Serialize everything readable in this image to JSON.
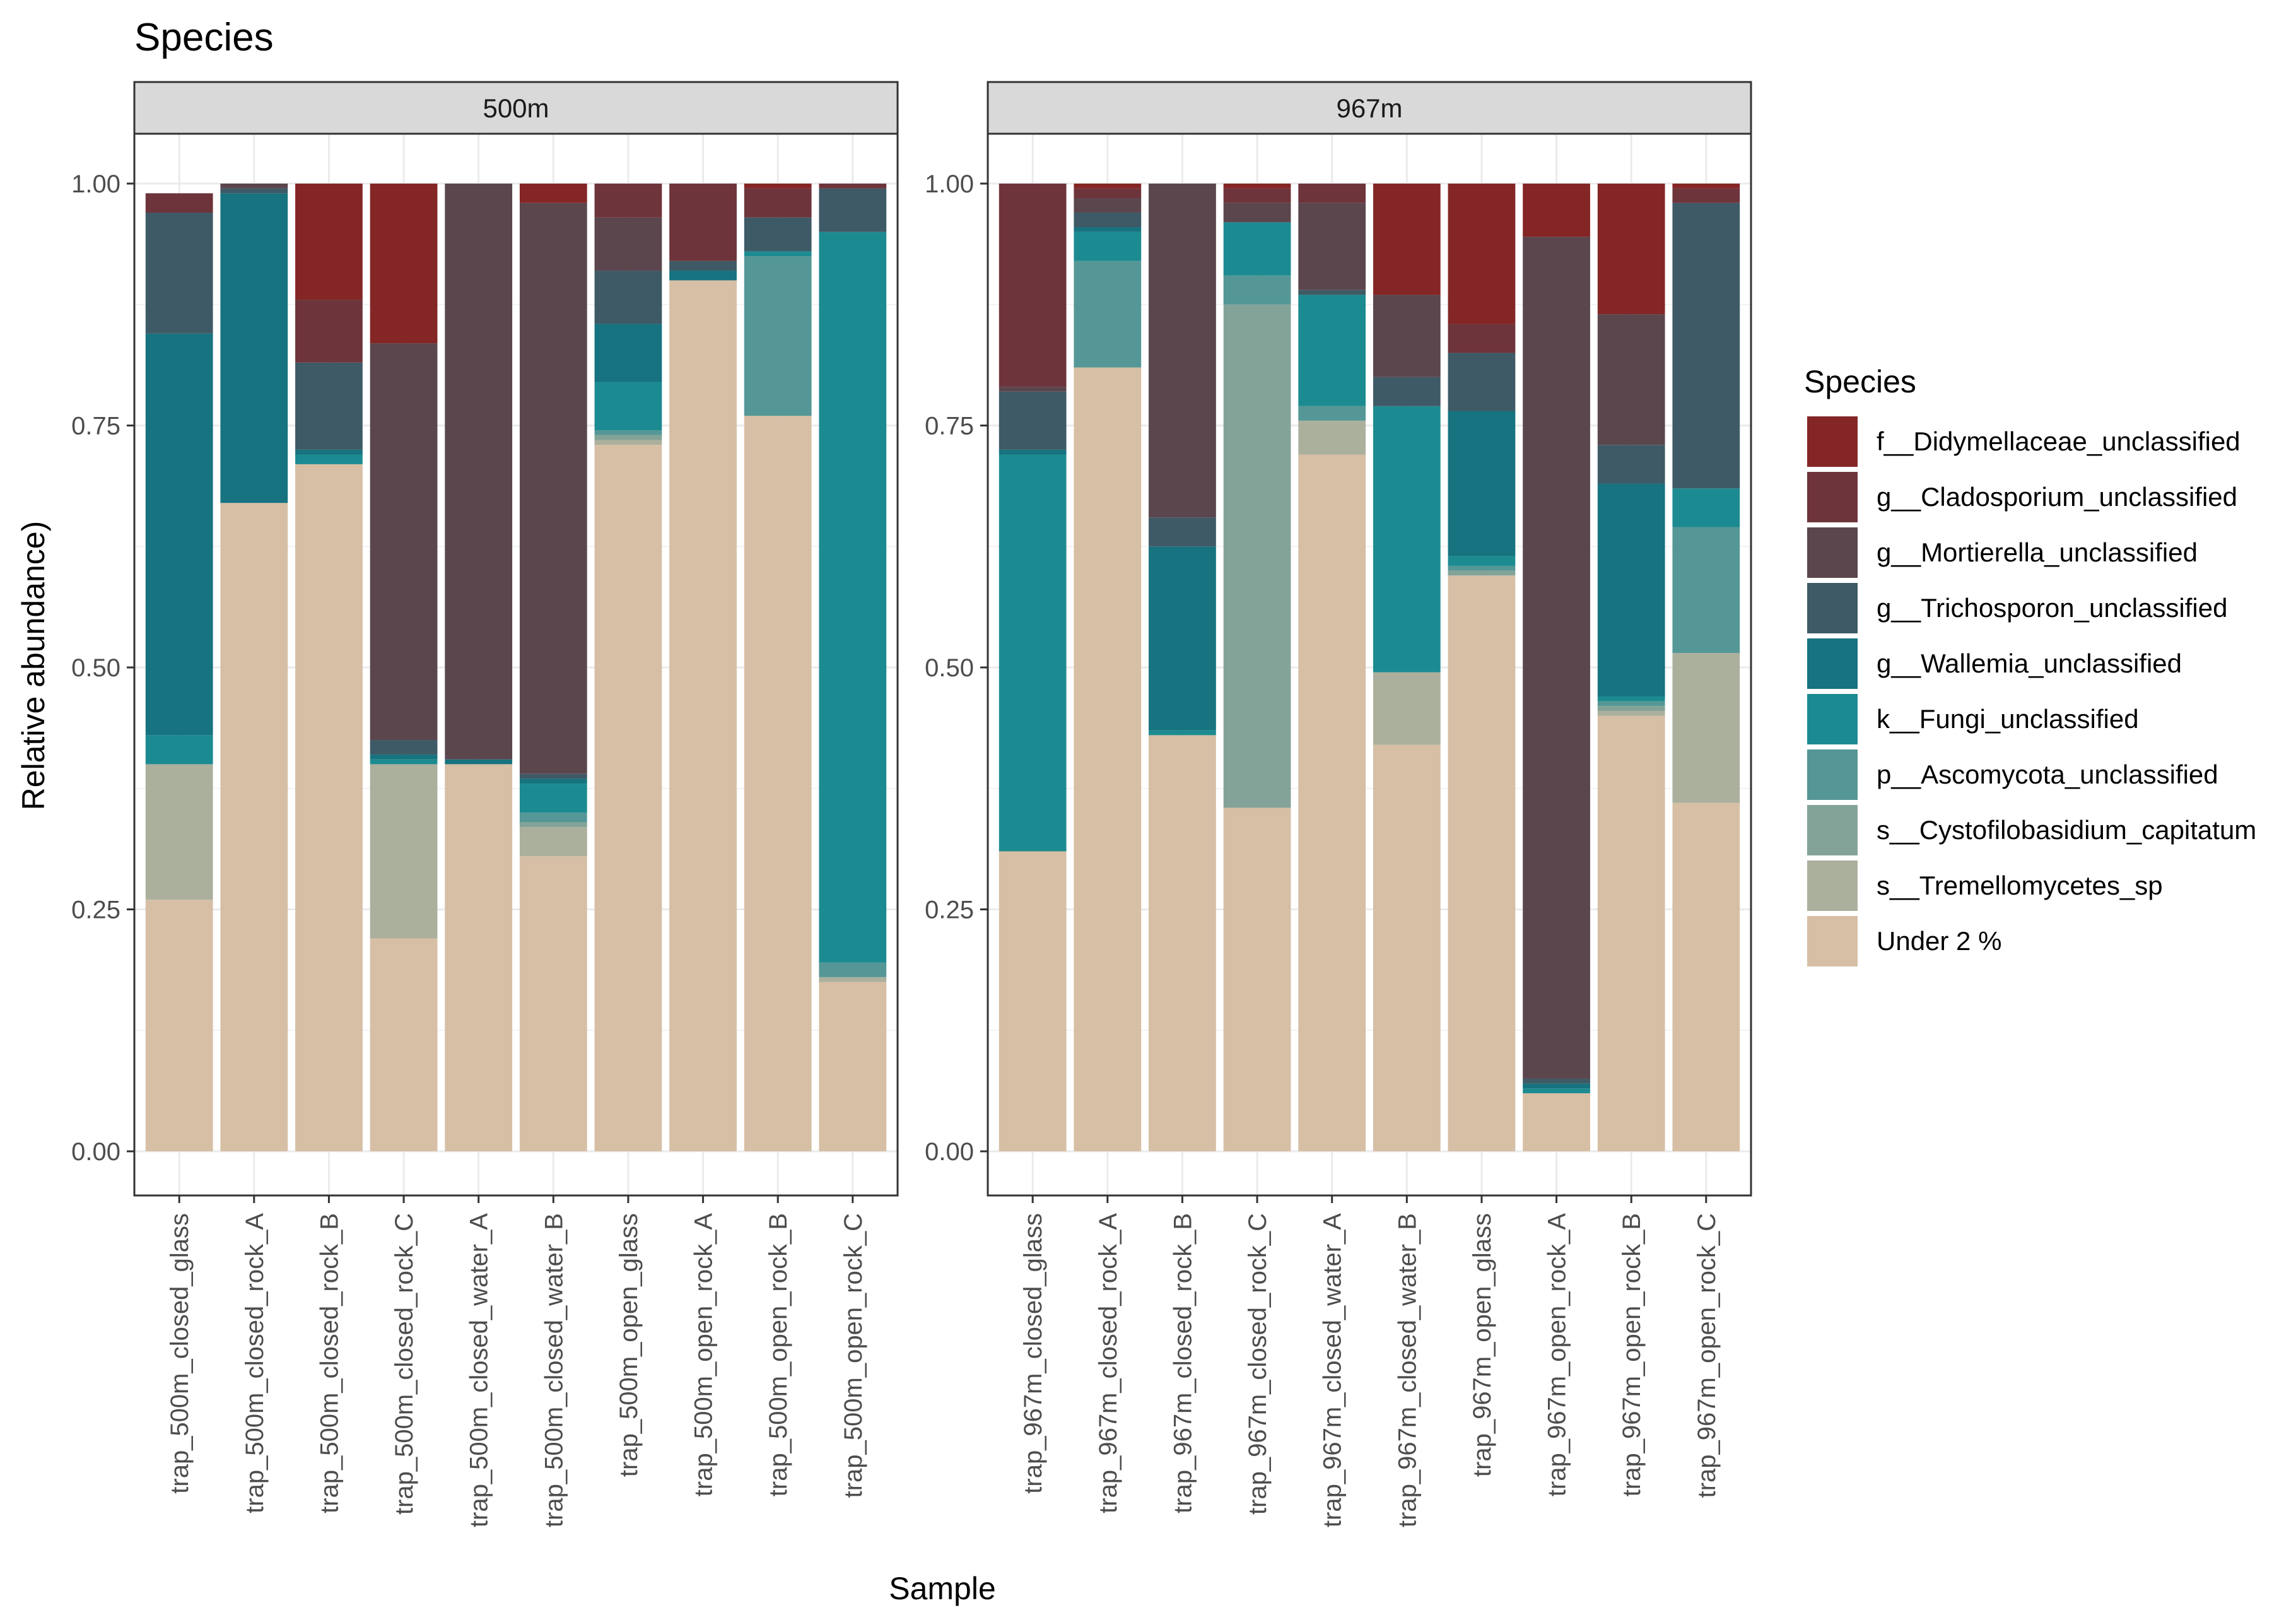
{
  "chart_data": {
    "type": "bar",
    "stacked": true,
    "title": "Species",
    "xlabel": "Sample",
    "ylabel": "Relative abundance)",
    "ylim": [
      0,
      1
    ],
    "yticks": [
      "0.00",
      "0.25",
      "0.50",
      "0.75",
      "1.00"
    ],
    "grid": true,
    "legend_position": "right",
    "legend_title": "Species",
    "series": [
      {
        "name": "f__Didymellaceae_unclassified",
        "color": "#842626"
      },
      {
        "name": "g__Cladosporium_unclassified",
        "color": "#6e343b"
      },
      {
        "name": "g__Mortierella_unclassified",
        "color": "#5b464e"
      },
      {
        "name": "g__Trichosporon_unclassified",
        "color": "#3e5a66"
      },
      {
        "name": "g__Wallemia_unclassified",
        "color": "#16737f"
      },
      {
        "name": "k__Fungi_unclassified",
        "color": "#1c8b91"
      },
      {
        "name": "p__Ascomycota_unclassified",
        "color": "#559796"
      },
      {
        "name": "s__Cystofilobasidium_capitatum",
        "color": "#84a398"
      },
      {
        "name": "s__Tremellomycetes_sp",
        "color": "#abb09d"
      },
      {
        "name": "Under 2 %",
        "color": "#d6bfa5"
      }
    ],
    "panels": [
      {
        "label": "500m",
        "samples": [
          {
            "name": "trap_500m_closed_glass",
            "values": [
              0,
              0.02,
              0,
              0.125,
              0.415,
              0.03,
              0,
              0,
              0.14,
              0.26
            ]
          },
          {
            "name": "trap_500m_closed_rock_A",
            "values": [
              0,
              0,
              0.005,
              0.005,
              0.32,
              0,
              0,
              0,
              0,
              0.67
            ]
          },
          {
            "name": "trap_500m_closed_rock_B",
            "values": [
              0.12,
              0.065,
              0,
              0.09,
              0.005,
              0.01,
              0,
              0,
              0,
              0.71
            ]
          },
          {
            "name": "trap_500m_closed_rock_C",
            "values": [
              0.165,
              0,
              0.41,
              0.015,
              0.005,
              0.005,
              0,
              0,
              0.18,
              0.22
            ]
          },
          {
            "name": "trap_500m_closed_water_A",
            "values": [
              0,
              0,
              0.595,
              0,
              0.005,
              0,
              0,
              0,
              0,
              0.4
            ]
          },
          {
            "name": "trap_500m_closed_water_B",
            "values": [
              0.02,
              0,
              0.59,
              0.005,
              0.005,
              0.03,
              0.01,
              0.005,
              0.03,
              0.305
            ]
          },
          {
            "name": "trap_500m_open_glass",
            "values": [
              0,
              0.035,
              0.055,
              0.055,
              0.06,
              0.05,
              0.005,
              0.005,
              0.005,
              0.73
            ]
          },
          {
            "name": "trap_500m_open_rock_A",
            "values": [
              0,
              0.08,
              0,
              0.01,
              0.01,
              0,
              0,
              0,
              0,
              0.9
            ]
          },
          {
            "name": "trap_500m_open_rock_B",
            "values": [
              0.005,
              0.03,
              0,
              0.035,
              0,
              0.005,
              0.165,
              0,
              0,
              0.76
            ]
          },
          {
            "name": "trap_500m_open_rock_C",
            "values": [
              0,
              0.005,
              0,
              0.045,
              0,
              0.755,
              0.015,
              0,
              0.005,
              0.175
            ]
          }
        ]
      },
      {
        "label": "967m",
        "samples": [
          {
            "name": "trap_967m_closed_glass",
            "values": [
              0,
              0.21,
              0.005,
              0.06,
              0.005,
              0.41,
              0,
              0,
              0,
              0.31
            ]
          },
          {
            "name": "trap_967m_closed_rock_A",
            "values": [
              0.005,
              0.01,
              0.015,
              0.015,
              0.005,
              0.03,
              0.11,
              0,
              0,
              0.81
            ]
          },
          {
            "name": "trap_967m_closed_rock_B",
            "values": [
              0,
              0,
              0.345,
              0.03,
              0.19,
              0.005,
              0,
              0,
              0,
              0.43
            ]
          },
          {
            "name": "trap_967m_closed_rock_C",
            "values": [
              0.005,
              0.015,
              0.02,
              0,
              0,
              0.055,
              0.03,
              0.52,
              0,
              0.355
            ]
          },
          {
            "name": "trap_967m_closed_water_A",
            "values": [
              0,
              0.02,
              0.09,
              0.005,
              0,
              0.115,
              0.015,
              0,
              0.035,
              0.72
            ]
          },
          {
            "name": "trap_967m_closed_water_B",
            "values": [
              0.115,
              0,
              0.085,
              0.03,
              0,
              0.275,
              0,
              0,
              0.075,
              0.42
            ]
          },
          {
            "name": "trap_967m_open_glass",
            "values": [
              0.145,
              0.03,
              0,
              0.06,
              0.15,
              0.01,
              0.005,
              0.005,
              0,
              0.595
            ]
          },
          {
            "name": "trap_967m_open_rock_A",
            "values": [
              0.055,
              0,
              0.87,
              0.005,
              0.005,
              0.005,
              0,
              0,
              0,
              0.06
            ]
          },
          {
            "name": "trap_967m_open_rock_B",
            "values": [
              0.135,
              0,
              0.135,
              0.04,
              0.22,
              0.005,
              0.005,
              0.005,
              0.005,
              0.45
            ]
          },
          {
            "name": "trap_967m_open_rock_C",
            "values": [
              0.005,
              0.015,
              0,
              0.295,
              0,
              0.04,
              0.13,
              0,
              0.155,
              0.36
            ]
          }
        ]
      }
    ]
  }
}
